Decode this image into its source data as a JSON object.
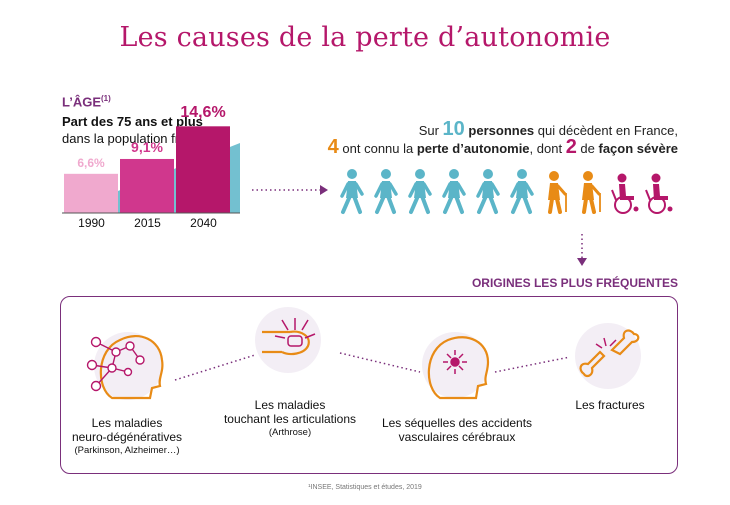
{
  "title": "Les causes de la perte d’autonomie",
  "age": {
    "heading": "L’ÂGE",
    "footnote_ref": "(1)",
    "subtitle_bold": "Part des 75 ans et plus",
    "subtitle_rest": "dans la population française"
  },
  "chart_data": {
    "type": "bar",
    "categories": [
      "1990",
      "2015",
      "2040"
    ],
    "values": [
      6.6,
      9.1,
      14.6
    ],
    "value_labels": [
      "6,6%",
      "9,1%",
      "14,6%"
    ],
    "colors": [
      "#f0a9ce",
      "#d0378d",
      "#b5176a"
    ],
    "ylim": [
      0,
      16
    ]
  },
  "stat": {
    "line1_pre": "Sur ",
    "line1_num": "10",
    "line1_bold": "personnes",
    "line1_post": " qui décèdent en France,",
    "line2_num": "4",
    "line2_mid": " ont connu la ",
    "line2_bold": "perte d’autonomie",
    "line2_mid2": ", dont ",
    "line2_num2": "2",
    "line2_post": " de ",
    "line2_bold2": "façon sévère"
  },
  "people": [
    {
      "icon": "walking-person-icon",
      "color": "#5bb5c8"
    },
    {
      "icon": "walking-person-icon",
      "color": "#5bb5c8"
    },
    {
      "icon": "walking-person-icon",
      "color": "#5bb5c8"
    },
    {
      "icon": "walking-person-icon",
      "color": "#5bb5c8"
    },
    {
      "icon": "walking-person-icon",
      "color": "#5bb5c8"
    },
    {
      "icon": "walking-person-icon",
      "color": "#5bb5c8"
    },
    {
      "icon": "elderly-person-icon",
      "color": "#e88b16"
    },
    {
      "icon": "elderly-person-icon",
      "color": "#e88b16"
    },
    {
      "icon": "wheelchair-icon",
      "color": "#b5176a"
    },
    {
      "icon": "wheelchair-icon",
      "color": "#b5176a"
    }
  ],
  "origins": {
    "heading": "ORIGINES LES PLUS FRÉQUENTES",
    "causes": [
      {
        "icon": "brain-network-icon",
        "line1": "Les maladies",
        "line2": "neuro-dégénératives",
        "note": "(Parkinson, Alzheimer…)"
      },
      {
        "icon": "joint-pain-icon",
        "line1": "Les maladies",
        "line2": "touchant les articulations",
        "note": "(Arthrose)"
      },
      {
        "icon": "stroke-head-icon",
        "line1": "Les séquelles des accidents",
        "line2": "vasculaires cérébraux",
        "note": ""
      },
      {
        "icon": "broken-bone-icon",
        "line1": "Les fractures",
        "line2": "",
        "note": ""
      }
    ]
  },
  "source": "¹INSEE, Statistiques et études, 2019",
  "colors": {
    "magenta": "#b5176a",
    "purple": "#7a2f7b",
    "teal": "#5bb5c8",
    "orange": "#e88b16"
  }
}
